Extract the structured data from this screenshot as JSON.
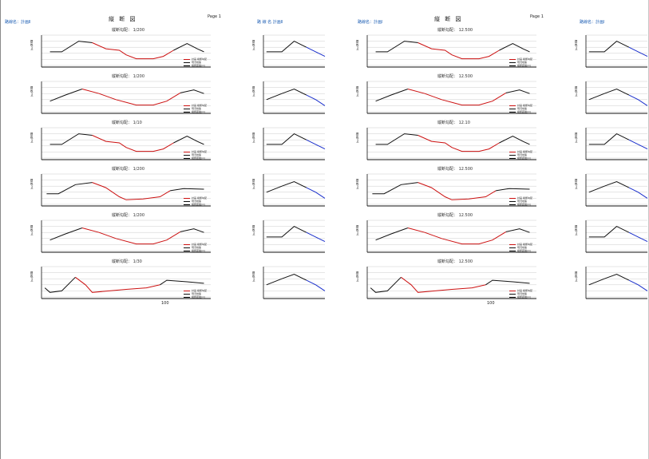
{
  "pages": [
    {
      "id": "p1",
      "route_label": "路線名：計画Ⅱ",
      "title": "縦 断 図",
      "page_label": "Page 1",
      "panel_titles": [
        "縦断勾配： 1/200",
        "縦断勾配： 1/200",
        "縦断勾配： 1/10",
        "縦断勾配： 1/200",
        "縦断勾配： 1/200",
        "縦断勾配： 1/30"
      ],
      "legend": {
        "line1": "計画 縦断勾配",
        "line2": "現況地盤",
        "ref": "縦断距離(m)"
      }
    },
    {
      "id": "p2",
      "route_label": "路 線 名 計画Ⅱ",
      "title": "",
      "page_label": "",
      "panel_titles": [],
      "legend": {
        "line1": "",
        "line2": "",
        "ref": ""
      }
    },
    {
      "id": "p3",
      "route_label": "路線名：計画Ⅰ",
      "title": "縦 断 図",
      "page_label": "Page 1",
      "panel_titles": [
        "縦断勾配： 12.500",
        "縦断勾配： 12.500",
        "縦断勾配： 12.10",
        "縦断勾配： 12.500",
        "縦断勾配： 12.500",
        "縦断勾配： 12.500"
      ],
      "legend": {
        "line1": "計画 縦断勾配",
        "line2": "現況地盤",
        "ref": "縦断距離(m)"
      }
    },
    {
      "id": "p4",
      "route_label": "路線名：計画Ⅰ",
      "title": "",
      "page_label": "",
      "panel_titles": [],
      "legend": {
        "line1": "",
        "line2": "",
        "ref": ""
      }
    }
  ],
  "axis": {
    "ylabel": "標高(m)",
    "yticks": [
      "5",
      "4",
      "3",
      "2",
      "1",
      "0"
    ],
    "xtick_end": "100"
  },
  "colors": {
    "plan": "#cc1111",
    "ground": "#111111",
    "alt": "#1a2fcc",
    "grid": "#cccccc"
  }
}
